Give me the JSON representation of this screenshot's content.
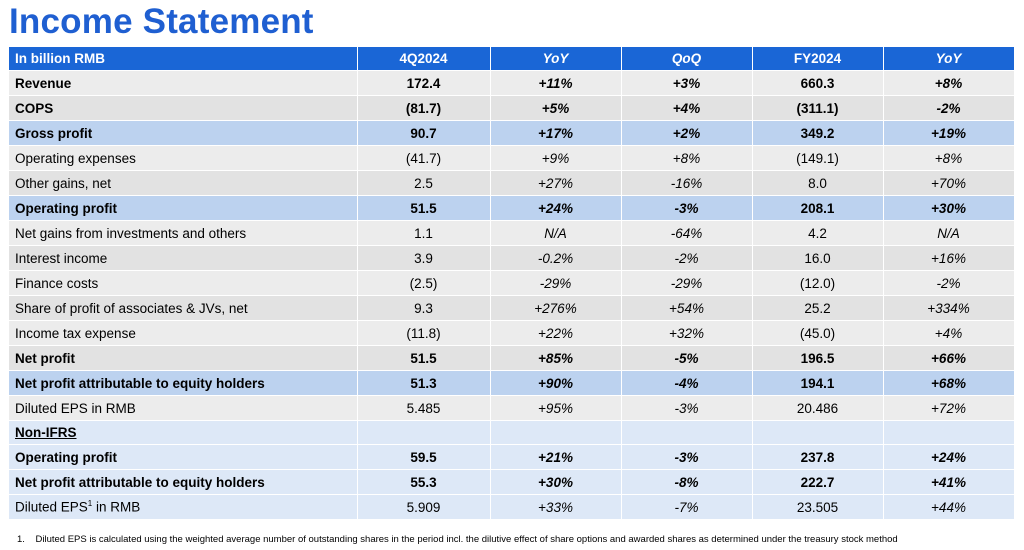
{
  "title": "Income Statement",
  "header": {
    "label": "In billion RMB",
    "col_4q": "4Q2024",
    "col_yoy": "YoY",
    "col_qoq": "QoQ",
    "col_fy": "FY2024",
    "col_fy_yoy": "YoY"
  },
  "rows": [
    {
      "label": "Revenue",
      "q": "172.4",
      "yoy": "+11%",
      "qoq": "+3%",
      "fy": "660.3",
      "fyyoy": "+8%"
    },
    {
      "label": "COPS",
      "q": "(81.7)",
      "yoy": "+5%",
      "qoq": "+4%",
      "fy": "(311.1)",
      "fyyoy": "-2%"
    },
    {
      "label": "Gross profit",
      "q": "90.7",
      "yoy": "+17%",
      "qoq": "+2%",
      "fy": "349.2",
      "fyyoy": "+19%"
    },
    {
      "label": "Operating expenses",
      "q": "(41.7)",
      "yoy": "+9%",
      "qoq": "+8%",
      "fy": "(149.1)",
      "fyyoy": "+8%"
    },
    {
      "label": "Other gains, net",
      "q": "2.5",
      "yoy": "+27%",
      "qoq": "-16%",
      "fy": "8.0",
      "fyyoy": "+70%"
    },
    {
      "label": "Operating profit",
      "q": "51.5",
      "yoy": "+24%",
      "qoq": "-3%",
      "fy": "208.1",
      "fyyoy": "+30%"
    },
    {
      "label": "Net gains from investments and others",
      "q": "1.1",
      "yoy": "N/A",
      "qoq": "-64%",
      "fy": "4.2",
      "fyyoy": "N/A"
    },
    {
      "label": "Interest income",
      "q": "3.9",
      "yoy": "-0.2%",
      "qoq": "-2%",
      "fy": "16.0",
      "fyyoy": "+16%"
    },
    {
      "label": "Finance costs",
      "q": "(2.5)",
      "yoy": "-29%",
      "qoq": "-29%",
      "fy": "(12.0)",
      "fyyoy": "-2%"
    },
    {
      "label": "Share of profit of associates & JVs, net",
      "q": "9.3",
      "yoy": "+276%",
      "qoq": "+54%",
      "fy": "25.2",
      "fyyoy": "+334%"
    },
    {
      "label": "Income tax expense",
      "q": "(11.8)",
      "yoy": "+22%",
      "qoq": "+32%",
      "fy": "(45.0)",
      "fyyoy": "+4%"
    },
    {
      "label": "Net profit",
      "q": "51.5",
      "yoy": "+85%",
      "qoq": "-5%",
      "fy": "196.5",
      "fyyoy": "+66%"
    },
    {
      "label": "Net profit attributable to equity holders",
      "q": "51.3",
      "yoy": "+90%",
      "qoq": "-4%",
      "fy": "194.1",
      "fyyoy": "+68%"
    },
    {
      "label": "Diluted EPS in RMB",
      "q": "5.485",
      "yoy": "+95%",
      "qoq": "-3%",
      "fy": "20.486",
      "fyyoy": "+72%"
    }
  ],
  "non_ifrs": {
    "heading": "Non-IFRS",
    "rows": [
      {
        "label": "Operating profit",
        "q": "59.5",
        "yoy": "+21%",
        "qoq": "-3%",
        "fy": "237.8",
        "fyyoy": "+24%"
      },
      {
        "label": "Net profit attributable to equity holders",
        "q": "55.3",
        "yoy": "+30%",
        "qoq": "-8%",
        "fy": "222.7",
        "fyyoy": "+41%"
      },
      {
        "label_pre": "Diluted EPS",
        "label_sup": "1",
        "label_post": " in RMB",
        "q": "5.909",
        "yoy": "+33%",
        "qoq": "-7%",
        "fy": "23.505",
        "fyyoy": "+44%"
      }
    ]
  },
  "footnote": {
    "number": "1.",
    "text": "Diluted EPS is calculated using the weighted average number of outstanding shares in the period incl. the dilutive effect of share options and awarded shares as determined under the treasury stock method"
  },
  "colors": {
    "title": "#1f5fd1",
    "header_bg": "#1a66d6",
    "highlight_bg": "#bcd2ef",
    "non_ifrs_bg": "#dde8f7"
  }
}
